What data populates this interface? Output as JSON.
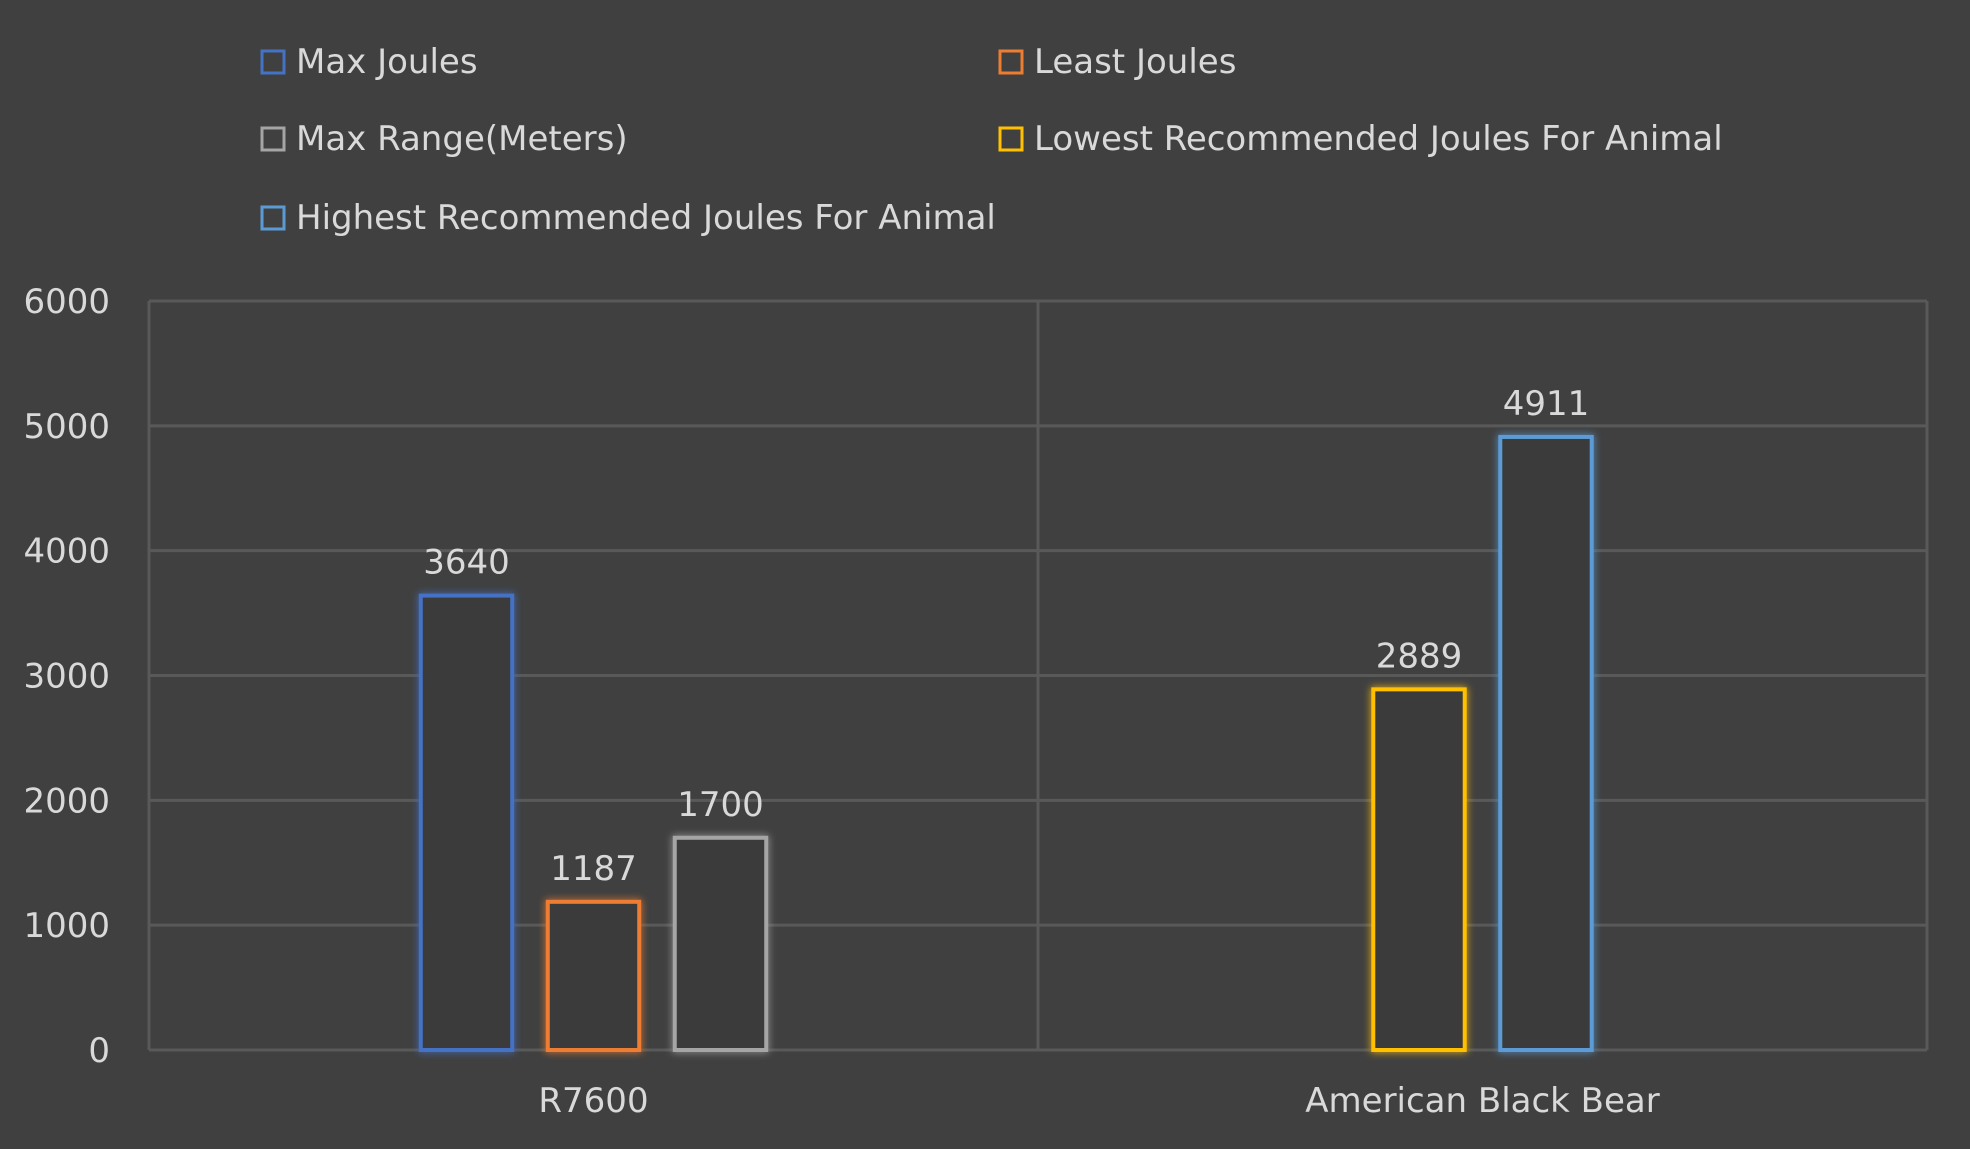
{
  "chart_data": {
    "type": "bar",
    "categories": [
      "R7600",
      "American Black Bear"
    ],
    "series": [
      {
        "name": "Max Joules",
        "color": "#4472C4",
        "values": [
          3640,
          null
        ]
      },
      {
        "name": "Least Joules",
        "color": "#ED7D31",
        "values": [
          1187,
          null
        ]
      },
      {
        "name": "Max Range(Meters)",
        "color": "#A5A5A5",
        "values": [
          1700,
          null
        ]
      },
      {
        "name": "Lowest Recommended Joules For Animal",
        "color": "#FFC000",
        "values": [
          null,
          2889
        ]
      },
      {
        "name": "Highest Recommended Joules For Animal",
        "color": "#5B9BD5",
        "values": [
          null,
          4911
        ]
      }
    ],
    "ylim": [
      0,
      6000
    ],
    "yticks": [
      "0",
      "1000",
      "2000",
      "3000",
      "4000",
      "5000",
      "6000"
    ],
    "grid": true,
    "legend_position": "top",
    "title": "",
    "xlabel": "",
    "ylabel": ""
  },
  "style": {
    "background": "#404040",
    "grid_color": "#595959",
    "text_color": "#D9D9D9"
  }
}
